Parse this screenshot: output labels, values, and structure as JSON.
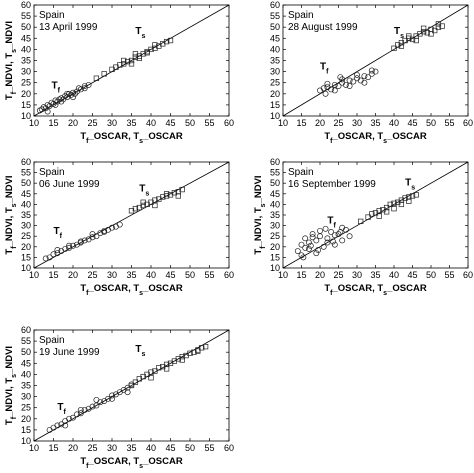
{
  "chart_data": [
    {
      "type": "scatter",
      "place": "Spain",
      "date": "13 April 1999",
      "xlabel": "T_f_OSCAR, T_s_OSCAR",
      "ylabel": "T_f_NDVI, T_s_NDVI",
      "xlim": [
        10,
        60
      ],
      "ylim": [
        10,
        60
      ],
      "xticks": [
        10,
        15,
        20,
        25,
        30,
        35,
        40,
        45,
        50,
        55,
        60
      ],
      "yticks": [
        10,
        15,
        20,
        25,
        30,
        35,
        40,
        45,
        50,
        55,
        60
      ],
      "reference_line": "1:1",
      "series": [
        {
          "name": "Tf",
          "marker": "circle",
          "label_at": [
            14.5,
            22.5
          ],
          "x": [
            11.5,
            12.5,
            13,
            13.5,
            14,
            14.5,
            15,
            15.5,
            16,
            16.5,
            17,
            17.5,
            18,
            18.5,
            19,
            19.5,
            20,
            20.5,
            21,
            22,
            23,
            24,
            12,
            13.5,
            15.5,
            17,
            18.5,
            20,
            21.5,
            23
          ],
          "y": [
            12.5,
            14,
            13.5,
            15,
            14.5,
            16,
            15.5,
            17,
            16.5,
            17.5,
            18,
            17.5,
            19,
            18.5,
            20,
            19.5,
            20.5,
            20,
            21,
            22,
            22.5,
            24,
            13,
            12,
            15,
            16.5,
            20,
            18.5,
            22.5,
            23.5
          ]
        },
        {
          "name": "Ts",
          "marker": "square",
          "label_at": [
            36,
            47
          ],
          "x": [
            26,
            28,
            30,
            31,
            32,
            33,
            34,
            35,
            36,
            37,
            38,
            39,
            40,
            41,
            42,
            43,
            44,
            45,
            35,
            37,
            39,
            41,
            33,
            36
          ],
          "y": [
            27,
            29,
            31,
            32,
            33,
            33.5,
            34.5,
            35,
            36.5,
            37,
            38,
            39,
            40,
            40.5,
            41.5,
            42.5,
            43.5,
            44,
            33.5,
            36,
            38.5,
            42,
            35,
            38
          ]
        }
      ]
    },
    {
      "type": "scatter",
      "place": "Spain",
      "date": "28 August 1999",
      "xlabel": "T_f_OSCAR, T_s_OSCAR",
      "ylabel": "",
      "xlim": [
        10,
        60
      ],
      "ylim": [
        10,
        60
      ],
      "xticks": [
        10,
        15,
        20,
        25,
        30,
        35,
        40,
        45,
        50,
        55,
        60
      ],
      "yticks": [
        10,
        15,
        20,
        25,
        30,
        35,
        40,
        45,
        50,
        55,
        60
      ],
      "reference_line": "1:1",
      "series": [
        {
          "name": "Tf",
          "marker": "circle",
          "label_at": [
            20,
            31
          ],
          "x": [
            20,
            21,
            22,
            23,
            24,
            25,
            26,
            27,
            28,
            29,
            30,
            31,
            32,
            33,
            34,
            35,
            22,
            24,
            26,
            28,
            30,
            32,
            34,
            21.5,
            25.5
          ],
          "y": [
            21.5,
            22.5,
            23,
            22,
            24,
            23.5,
            25,
            24,
            26,
            25.5,
            27,
            26,
            28,
            27.5,
            29,
            30,
            24.5,
            21.5,
            26.5,
            23.5,
            28.5,
            25,
            30.5,
            20,
            27.5
          ]
        },
        {
          "name": "Ts",
          "marker": "square",
          "label_at": [
            40,
            47
          ],
          "x": [
            40,
            41,
            42,
            43,
            44,
            45,
            46,
            47,
            48,
            49,
            50,
            51,
            52,
            53,
            42,
            44,
            46,
            48,
            50,
            52
          ],
          "y": [
            40.5,
            42,
            43,
            44,
            45,
            44.5,
            46,
            47,
            48,
            47.5,
            49,
            48.5,
            50,
            50.5,
            41.5,
            46,
            44,
            49.5,
            47,
            51.5
          ]
        }
      ]
    },
    {
      "type": "scatter",
      "place": "Spain",
      "date": "06 June 1999",
      "xlabel": "T_f_OSCAR, T_s_OSCAR",
      "ylabel": "T_f_NDVI, T_s_NDVI",
      "xlim": [
        10,
        60
      ],
      "ylim": [
        10,
        60
      ],
      "xticks": [
        10,
        15,
        20,
        25,
        30,
        35,
        40,
        45,
        50,
        55,
        60
      ],
      "yticks": [
        10,
        15,
        20,
        25,
        30,
        35,
        40,
        45,
        50,
        55,
        60
      ],
      "reference_line": "1:1",
      "series": [
        {
          "name": "Tf",
          "marker": "circle",
          "label_at": [
            15,
            26
          ],
          "x": [
            13,
            14,
            15,
            16,
            17,
            18,
            19,
            20,
            21,
            22,
            23,
            24,
            25,
            26,
            27,
            28,
            29,
            30,
            31,
            32,
            16,
            19,
            22,
            25,
            28
          ],
          "y": [
            14.5,
            15,
            16.5,
            17,
            18,
            19,
            19.5,
            20.5,
            21,
            22.5,
            23,
            23.5,
            24.5,
            25,
            26.5,
            27,
            28,
            29,
            29.5,
            30.5,
            18.5,
            20.5,
            22,
            26,
            27.5
          ]
        },
        {
          "name": "Ts",
          "marker": "square",
          "label_at": [
            37,
            46
          ],
          "x": [
            35,
            36,
            37,
            38,
            39,
            40,
            41,
            42,
            43,
            44,
            45,
            46,
            47,
            48,
            38,
            41,
            44,
            47
          ],
          "y": [
            37,
            38,
            38.5,
            39.5,
            40,
            41,
            42,
            42.5,
            43.5,
            44,
            44.5,
            45.5,
            46,
            47,
            41,
            39.5,
            45,
            44
          ]
        }
      ]
    },
    {
      "type": "scatter",
      "place": "Spain",
      "date": "16 September 1999",
      "xlabel": "T_f_OSCAR, T_s_OSCAR",
      "ylabel": "T_f_NDVI, T_s_NDVI",
      "xlim": [
        10,
        60
      ],
      "ylim": [
        10,
        60
      ],
      "xticks": [
        10,
        15,
        20,
        25,
        30,
        35,
        40,
        45,
        50,
        55,
        60
      ],
      "yticks": [
        10,
        15,
        20,
        25,
        30,
        35,
        40,
        45,
        50,
        55,
        60
      ],
      "reference_line": "1:1",
      "series": [
        {
          "name": "Tf",
          "marker": "circle",
          "label_at": [
            22,
            31
          ],
          "x": [
            14,
            15,
            15,
            16,
            17,
            17,
            18,
            19,
            19,
            20,
            21,
            22,
            23,
            24,
            25,
            26,
            27,
            28,
            16,
            18,
            20,
            22,
            24,
            26,
            15.5,
            17.5,
            19.5,
            21.5,
            23.5,
            25.5
          ],
          "y": [
            18,
            21,
            16,
            24,
            19,
            22,
            26,
            17,
            23,
            25,
            20,
            24,
            27,
            21,
            26,
            23,
            28,
            25,
            19.5,
            24.5,
            27.5,
            22,
            25.5,
            29,
            15,
            20.5,
            18.5,
            28.5,
            22.5,
            27
          ]
        },
        {
          "name": "Ts",
          "marker": "square",
          "label_at": [
            43,
            49
          ],
          "x": [
            31,
            33,
            34,
            35,
            36,
            37,
            38,
            39,
            40,
            41,
            42,
            43,
            44,
            45,
            46,
            36,
            38,
            40,
            42,
            44
          ],
          "y": [
            32,
            34,
            35.5,
            36,
            37,
            37.5,
            38.5,
            40,
            40.5,
            41,
            42,
            43,
            43.5,
            44,
            44.5,
            34.5,
            36.5,
            38,
            40,
            41.5
          ]
        }
      ]
    },
    {
      "type": "scatter",
      "place": "Spain",
      "date": "19 June 1999",
      "xlabel": "T_f_OSCAR, T_s_OSCAR",
      "ylabel": "T_f_NDVI, T_s_NDVI",
      "xlim": [
        10,
        60
      ],
      "ylim": [
        10,
        60
      ],
      "xticks": [
        10,
        15,
        20,
        25,
        30,
        35,
        40,
        45,
        50,
        55,
        60
      ],
      "yticks": [
        10,
        15,
        20,
        25,
        30,
        35,
        40,
        45,
        50,
        55,
        60
      ],
      "reference_line": "1:1",
      "series": [
        {
          "name": "Tf",
          "marker": "circle",
          "label_at": [
            16,
            24
          ],
          "x": [
            14,
            15,
            16,
            17,
            18,
            19,
            20,
            21,
            22,
            23,
            24,
            25,
            26,
            27,
            28,
            29,
            30,
            31,
            32,
            33,
            34,
            35,
            18,
            22,
            26,
            30,
            34
          ],
          "y": [
            15,
            16,
            17,
            17.5,
            19,
            20,
            20.5,
            22,
            22.5,
            24,
            24.5,
            25.5,
            26,
            27.5,
            28,
            29,
            30.5,
            31,
            32,
            33,
            34,
            35.5,
            17,
            24,
            28.5,
            29,
            32
          ]
        },
        {
          "name": "Ts",
          "marker": "square",
          "label_at": [
            36,
            50
          ],
          "x": [
            35,
            36,
            37,
            38,
            39,
            40,
            41,
            42,
            43,
            44,
            45,
            46,
            47,
            48,
            49,
            50,
            51,
            52,
            53,
            54,
            40,
            44,
            48,
            52
          ],
          "y": [
            35,
            36.5,
            38,
            39,
            40,
            41,
            41.5,
            43,
            43.5,
            44.5,
            45,
            46,
            47,
            48,
            48.5,
            49.5,
            50,
            51,
            52,
            52.5,
            38.5,
            42.5,
            46.5,
            50.5
          ]
        }
      ]
    }
  ]
}
